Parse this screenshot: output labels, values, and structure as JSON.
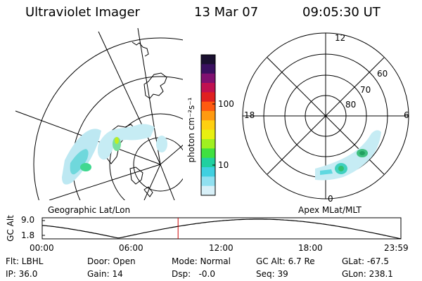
{
  "header": {
    "instrument": "Ultraviolet Imager",
    "date": "13 Mar 07",
    "time": "09:05:30 UT"
  },
  "colorbar": {
    "unit_label": "photon cm⁻²s⁻¹",
    "ticks": [
      "100",
      "10"
    ],
    "colors": [
      "#1a1030",
      "#3a1060",
      "#801070",
      "#c01050",
      "#e02020",
      "#ff5a10",
      "#ff9a10",
      "#ffd010",
      "#e8f010",
      "#a0f020",
      "#40e040",
      "#20d0a0",
      "#40d0e0",
      "#90e0f0",
      "#d8f0f8"
    ]
  },
  "geo_map": {
    "label": "Geographic Lat/Lon"
  },
  "polar_plot": {
    "label": "Apex MLat/MLT",
    "mlt_labels": {
      "top": "12",
      "left": "18",
      "right": "6",
      "bottom": "0"
    },
    "lat_labels": [
      "60",
      "70",
      "80"
    ]
  },
  "altitude_plot": {
    "axis_label": "GC Alt",
    "y_ticks": [
      "9.0",
      "1.8"
    ],
    "x_ticks": [
      "00:00",
      "06:00",
      "12:00",
      "18:00",
      "23:59"
    ],
    "current_time_marker": "09:05:30",
    "marker_color": "#cc0000"
  },
  "status": {
    "row1": {
      "filter": "Flt: LBHL",
      "door": "Door: Open",
      "mode": "Mode: Normal",
      "gc_alt": "GC Alt: 6.7 Re",
      "glat": "GLat: -67.5"
    },
    "row2": {
      "ip": "IP: 36.0",
      "gain": "Gain: 14",
      "dsp": "Dsp:   -0.0",
      "seq": "Seq: 39",
      "glon": "GLon: 238.1"
    }
  }
}
